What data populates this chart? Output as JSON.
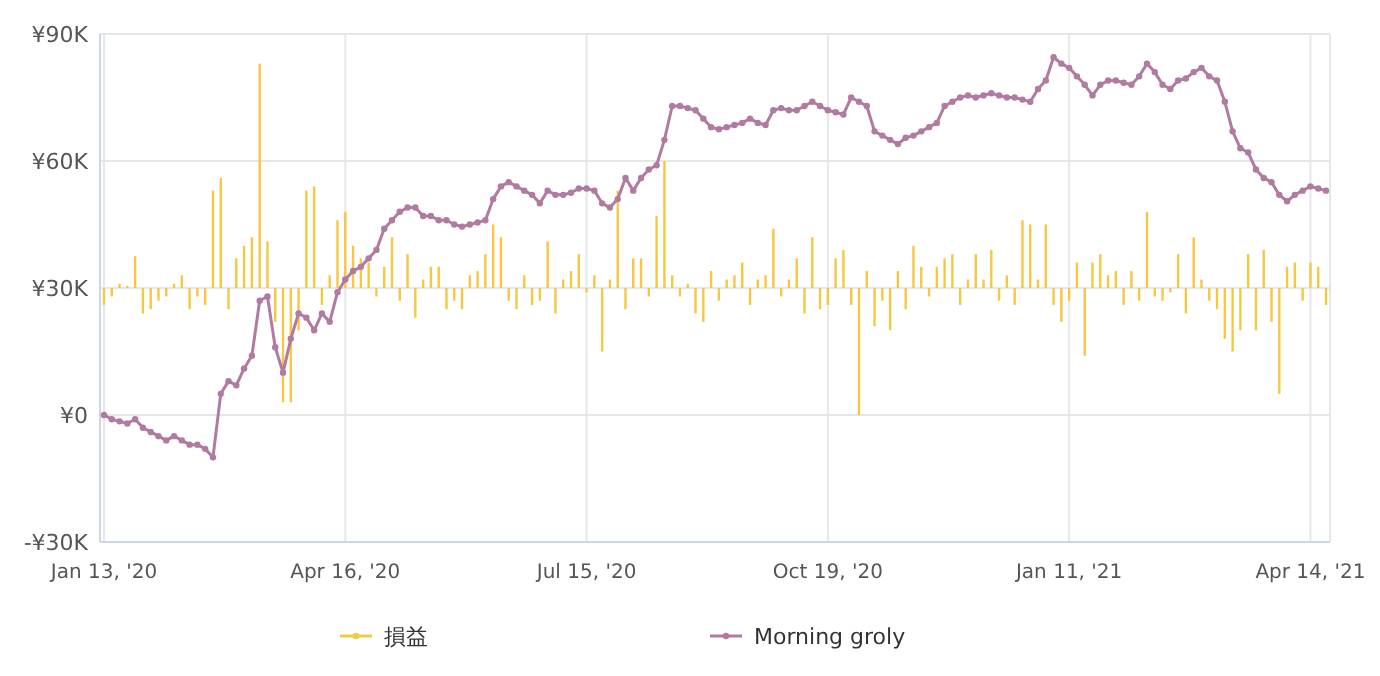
{
  "chart_data": {
    "type": "bar",
    "categories": [
      "Jan 13, '20",
      null,
      null,
      null,
      null,
      null,
      null,
      null,
      null,
      null,
      null,
      null,
      null,
      null,
      null,
      null,
      null,
      null,
      null,
      null,
      null,
      null,
      null,
      null,
      null,
      null,
      null,
      null,
      null,
      null,
      null,
      "Apr 16, '20",
      null,
      null,
      null,
      null,
      null,
      null,
      null,
      null,
      null,
      null,
      null,
      null,
      null,
      null,
      null,
      null,
      null,
      null,
      null,
      null,
      null,
      null,
      null,
      null,
      null,
      null,
      null,
      null,
      null,
      null,
      "Jul 15, '20",
      null,
      null,
      null,
      null,
      null,
      null,
      null,
      null,
      null,
      null,
      null,
      null,
      null,
      null,
      null,
      null,
      null,
      null,
      null,
      null,
      null,
      null,
      null,
      null,
      null,
      null,
      null,
      null,
      null,
      null,
      "Oct 19, '20",
      null,
      null,
      null,
      null,
      null,
      null,
      null,
      null,
      null,
      null,
      null,
      null,
      null,
      null,
      null,
      null,
      null,
      null,
      null,
      null,
      null,
      null,
      null,
      null,
      null,
      null,
      null,
      null,
      null,
      null,
      "Jan 11, '21",
      null,
      null,
      null,
      null,
      null,
      null,
      null,
      null,
      null,
      null,
      null,
      null,
      null,
      null,
      null,
      null,
      null,
      null,
      null,
      null,
      null,
      null,
      null,
      null,
      null,
      null,
      null,
      null,
      null,
      null,
      "Apr 14, '21",
      null,
      null
    ],
    "series": [
      {
        "name": "損益",
        "color": "#f5c842",
        "values": [
          -4,
          -2,
          1,
          0.5,
          7.5,
          -6,
          -5,
          -3,
          -2,
          1,
          3,
          -5,
          -2,
          -4,
          23,
          26,
          -5,
          7,
          10,
          12,
          53,
          11,
          -8,
          -27,
          -27,
          -10,
          23,
          24,
          -4,
          3,
          16,
          18,
          10,
          7,
          6,
          -2,
          5,
          12,
          -3,
          8,
          -7,
          2,
          5,
          5,
          -5,
          -3,
          -5,
          3,
          4,
          8,
          15,
          12,
          -3,
          -5,
          3,
          -4,
          -3,
          11,
          -6,
          2,
          4,
          8,
          -1,
          3,
          -15,
          2,
          23,
          -5,
          7,
          7,
          -2,
          17,
          30,
          3,
          -2,
          1,
          -6,
          -8,
          4,
          -3,
          2,
          3,
          6,
          -4,
          2,
          3,
          14,
          -2,
          2,
          7,
          -6,
          12,
          -5,
          -4,
          7,
          9,
          -4,
          -30,
          4,
          -9,
          -3,
          -10,
          4,
          -5,
          10,
          5,
          -2,
          5,
          7,
          8,
          -4,
          2,
          8,
          2,
          9,
          -3,
          3,
          -4,
          16,
          15,
          2,
          15,
          -4,
          -8,
          -3,
          6,
          -16,
          6,
          8,
          3,
          4,
          -4,
          4,
          -3,
          18,
          -2,
          -3,
          -1,
          8,
          -6,
          12,
          2,
          -3,
          -5,
          -12,
          -15,
          -10,
          8,
          -10,
          9,
          -8,
          -25,
          5,
          6,
          -3,
          6,
          5,
          -4
        ],
        "base": [
          30,
          30,
          30,
          30,
          30,
          30,
          30,
          30,
          30,
          30,
          30,
          30,
          30,
          30,
          30,
          30,
          30,
          30,
          30,
          30,
          30,
          30,
          30,
          30,
          30,
          30,
          30,
          30,
          30,
          30,
          30,
          30,
          30,
          30,
          30,
          30,
          30,
          30,
          30,
          30,
          30,
          30,
          30,
          30,
          30,
          30,
          30,
          30,
          30,
          30,
          30,
          30,
          30,
          30,
          30,
          30,
          30,
          30,
          30,
          30,
          30,
          30,
          30,
          30,
          30,
          30,
          30,
          30,
          30,
          30,
          30,
          30,
          30,
          30,
          30,
          30,
          30,
          30,
          30,
          30,
          30,
          30,
          30,
          30,
          30,
          30,
          30,
          30,
          30,
          30,
          30,
          30,
          30,
          30,
          30,
          30,
          30,
          30,
          30,
          30,
          30,
          30,
          30,
          30,
          30,
          30,
          30,
          30,
          30,
          30,
          30,
          30,
          30,
          30,
          30,
          30,
          30,
          30,
          30,
          30,
          30,
          30,
          30,
          30,
          30,
          30,
          30,
          30,
          30,
          30,
          30,
          30,
          30,
          30,
          30,
          30,
          30,
          30,
          30,
          30,
          30,
          30,
          30,
          30,
          30,
          30,
          30,
          30,
          30,
          30,
          30,
          30,
          30,
          30,
          30,
          30,
          30,
          30
        ]
      },
      {
        "name": "Morning groly",
        "type": "line",
        "color": "#b07aa1",
        "marker": "circle",
        "values": [
          0,
          -1,
          -1.5,
          -2,
          -1,
          -3,
          -4,
          -5,
          -6,
          -5,
          -6,
          -7,
          -7,
          -8,
          -10,
          5,
          8,
          7,
          11,
          14,
          27,
          28,
          16,
          10,
          18,
          24,
          23,
          20,
          24,
          22,
          29,
          32,
          34,
          35,
          37,
          39,
          44,
          46,
          48,
          49,
          49,
          47,
          47,
          46,
          46,
          45,
          44.5,
          45,
          45.5,
          46,
          51,
          54,
          55,
          54,
          53,
          52,
          50,
          53,
          52,
          52,
          52.5,
          53.5,
          53.5,
          53,
          50,
          49,
          51,
          56,
          53,
          56,
          58,
          59,
          65,
          73,
          73,
          72.5,
          72,
          70,
          68,
          67.5,
          68,
          68.5,
          69,
          70,
          69,
          68.5,
          72,
          72.5,
          72,
          72,
          73,
          74,
          73,
          72,
          71.5,
          71,
          75,
          74,
          73,
          67,
          66,
          65,
          64,
          65.5,
          66,
          67,
          68,
          69,
          73,
          74,
          75,
          75.5,
          75,
          75.5,
          76,
          75.5,
          75,
          75,
          74.5,
          74,
          77,
          79,
          84.5,
          83,
          82,
          80,
          78,
          75.5,
          78,
          79,
          79,
          78.5,
          78,
          80,
          83,
          81,
          78,
          77,
          79,
          79.5,
          81,
          82,
          80,
          79,
          74,
          67,
          63,
          62,
          58,
          56,
          55,
          52,
          50.5,
          52,
          53,
          54,
          53.5,
          53
        ]
      }
    ],
    "ylim": [
      -30,
      90
    ],
    "yticks": [
      {
        "value": -30,
        "label": "-¥30K"
      },
      {
        "value": 0,
        "label": "¥0"
      },
      {
        "value": 30,
        "label": "¥30K"
      },
      {
        "value": 60,
        "label": "¥60K"
      },
      {
        "value": 90,
        "label": "¥90K"
      }
    ],
    "grid": true,
    "legend": "bottom"
  }
}
